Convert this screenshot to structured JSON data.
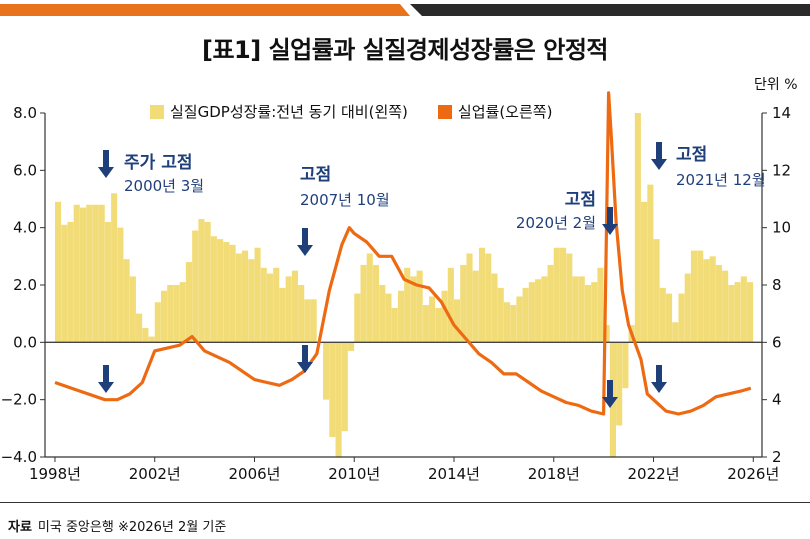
{
  "title": "[표1] 실업률과 실질경제성장률은 안정적",
  "unit_label": "단위 %",
  "source": {
    "label": "자료",
    "text": "미국 중앙은행  ※2026년 2월 기준"
  },
  "colors": {
    "bar": "#f2dc78",
    "line": "#ee6a12",
    "arrow": "#1f3f7a",
    "topbar_orange": "#e8731c",
    "topbar_dark": "#2a2a2a"
  },
  "annotations": [
    {
      "heading": "주가 고점",
      "sub": "2000년 3월"
    },
    {
      "heading": "고점",
      "sub": "2007년 10월"
    },
    {
      "heading": "고점",
      "sub": "2020년 2월"
    },
    {
      "heading": "고점",
      "sub": "2021년 12월"
    }
  ],
  "chart_data": {
    "type": "bar+line",
    "legend": [
      "실질GDP성장률:전년 동기 대비(왼쪽)",
      "실업률(오른쪽)"
    ],
    "left_axis": {
      "ylim": [
        -4,
        8
      ],
      "ticks": [
        "−4.0",
        "−2.0",
        "0.0",
        "2.0",
        "4.0",
        "6.0",
        "8.0"
      ]
    },
    "right_axis": {
      "ylim": [
        2,
        14
      ],
      "ticks": [
        "2",
        "4",
        "6",
        "8",
        "10",
        "12",
        "14"
      ]
    },
    "x_ticks": [
      "1998년",
      "2002년",
      "2006년",
      "2010년",
      "2014년",
      "2018년",
      "2022년",
      "2026년"
    ],
    "gdp_growth": {
      "name": "실질GDP성장률:전년 동기 대비(왼쪽)",
      "x": [
        1998.0,
        1998.25,
        1998.5,
        1998.75,
        1999.0,
        1999.25,
        1999.5,
        1999.75,
        2000.0,
        2000.25,
        2000.5,
        2000.75,
        2001.0,
        2001.25,
        2001.5,
        2001.75,
        2002.0,
        2002.25,
        2002.5,
        2002.75,
        2003.0,
        2003.25,
        2003.5,
        2003.75,
        2004.0,
        2004.25,
        2004.5,
        2004.75,
        2005.0,
        2005.25,
        2005.5,
        2005.75,
        2006.0,
        2006.25,
        2006.5,
        2006.75,
        2007.0,
        2007.25,
        2007.5,
        2007.75,
        2008.0,
        2008.25,
        2008.5,
        2008.75,
        2009.0,
        2009.25,
        2009.5,
        2009.75,
        2010.0,
        2010.25,
        2010.5,
        2010.75,
        2011.0,
        2011.25,
        2011.5,
        2011.75,
        2012.0,
        2012.25,
        2012.5,
        2012.75,
        2013.0,
        2013.25,
        2013.5,
        2013.75,
        2014.0,
        2014.25,
        2014.5,
        2014.75,
        2015.0,
        2015.25,
        2015.5,
        2015.75,
        2016.0,
        2016.25,
        2016.5,
        2016.75,
        2017.0,
        2017.25,
        2017.5,
        2017.75,
        2018.0,
        2018.25,
        2018.5,
        2018.75,
        2019.0,
        2019.25,
        2019.5,
        2019.75,
        2020.0,
        2020.25,
        2020.5,
        2020.75,
        2021.0,
        2021.25,
        2021.5,
        2021.75,
        2022.0,
        2022.25,
        2022.5,
        2022.75,
        2023.0,
        2023.25,
        2023.5,
        2023.75,
        2024.0,
        2024.25,
        2024.5,
        2024.75,
        2025.0,
        2025.25,
        2025.5,
        2025.75
      ],
      "values": [
        4.9,
        4.1,
        4.2,
        4.8,
        4.7,
        4.8,
        4.8,
        4.8,
        4.2,
        5.2,
        4.0,
        2.9,
        2.3,
        1.0,
        0.5,
        0.2,
        1.4,
        1.8,
        2.0,
        2.0,
        2.1,
        2.8,
        3.9,
        4.3,
        4.2,
        3.7,
        3.6,
        3.5,
        3.4,
        3.1,
        3.2,
        2.9,
        3.3,
        2.6,
        2.4,
        2.6,
        1.9,
        2.3,
        2.5,
        2.0,
        1.5,
        1.5,
        0.0,
        -2.0,
        -3.3,
        -4.0,
        -3.1,
        -0.3,
        1.7,
        2.7,
        3.1,
        2.7,
        2.0,
        1.7,
        1.2,
        1.8,
        2.6,
        2.3,
        2.5,
        1.3,
        1.6,
        1.2,
        1.8,
        2.6,
        1.5,
        2.7,
        3.1,
        2.5,
        3.3,
        3.1,
        2.4,
        1.9,
        1.4,
        1.3,
        1.6,
        1.9,
        2.1,
        2.2,
        2.3,
        2.7,
        3.3,
        3.3,
        3.1,
        2.3,
        2.3,
        2.0,
        2.1,
        2.6,
        0.6,
        -7.5,
        -2.9,
        -1.6,
        0.6,
        12.2,
        4.9,
        5.5,
        3.6,
        1.9,
        1.7,
        0.7,
        1.7,
        2.4,
        3.2,
        3.2,
        2.9,
        3.0,
        2.7,
        2.5,
        2.0,
        2.1,
        2.3,
        2.1
      ]
    },
    "unemployment": {
      "name": "실업률(오른쪽)",
      "x": [
        1998.0,
        1999.0,
        2000.0,
        2000.5,
        2001.0,
        2001.5,
        2002.0,
        2002.5,
        2003.0,
        2003.5,
        2004.0,
        2005.0,
        2006.0,
        2006.5,
        2007.0,
        2007.5,
        2008.0,
        2008.5,
        2009.0,
        2009.5,
        2009.8,
        2010.0,
        2010.5,
        2011.0,
        2011.5,
        2012.0,
        2012.5,
        2013.0,
        2013.5,
        2014.0,
        2014.5,
        2015.0,
        2015.5,
        2016.0,
        2016.5,
        2017.0,
        2017.5,
        2018.0,
        2018.5,
        2019.0,
        2019.5,
        2020.0,
        2020.2,
        2020.3,
        2020.5,
        2020.75,
        2021.0,
        2021.25,
        2021.5,
        2021.75,
        2022.0,
        2022.5,
        2023.0,
        2023.5,
        2024.0,
        2024.5,
        2025.0,
        2025.5,
        2025.9
      ],
      "values": [
        4.6,
        4.3,
        4.0,
        4.0,
        4.2,
        4.6,
        5.7,
        5.8,
        5.9,
        6.2,
        5.7,
        5.3,
        4.7,
        4.6,
        4.5,
        4.7,
        5.0,
        5.6,
        7.8,
        9.4,
        10.0,
        9.8,
        9.5,
        9.0,
        9.0,
        8.2,
        8.0,
        7.9,
        7.4,
        6.6,
        6.1,
        5.6,
        5.3,
        4.9,
        4.9,
        4.6,
        4.3,
        4.1,
        3.9,
        3.8,
        3.6,
        3.5,
        14.7,
        13.3,
        10.2,
        7.8,
        6.6,
        6.0,
        5.4,
        4.2,
        4.0,
        3.6,
        3.5,
        3.6,
        3.8,
        4.1,
        4.2,
        4.3,
        4.4
      ]
    }
  }
}
